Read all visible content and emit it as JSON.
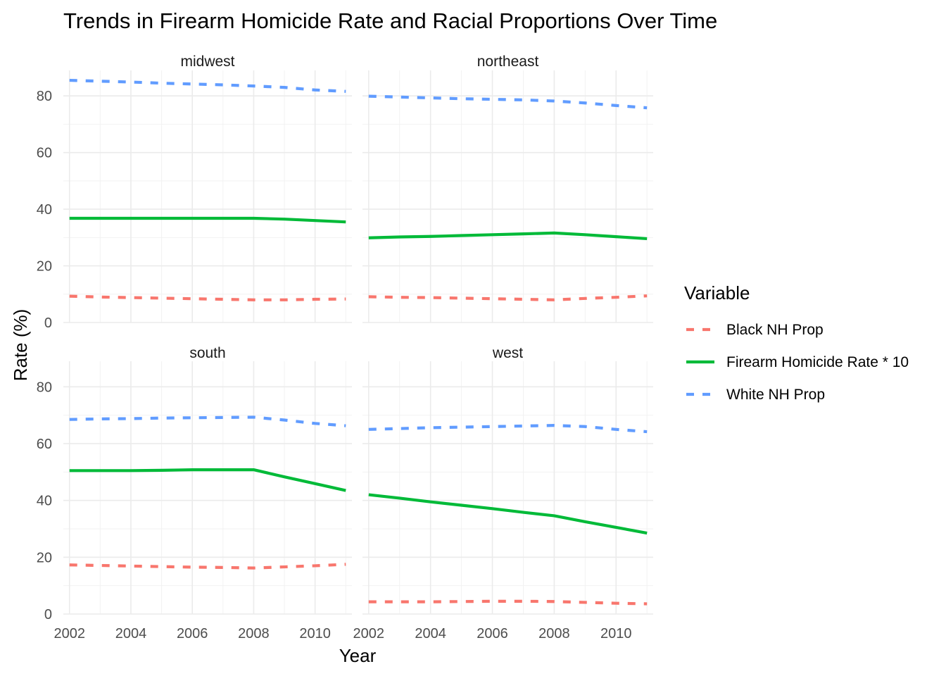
{
  "chart_data": {
    "type": "line",
    "title": "Trends in Firearm Homicide Rate and Racial Proportions Over Time",
    "xlabel": "Year",
    "ylabel": "Rate (%)",
    "xlim": [
      2001.8,
      2011.2
    ],
    "ylim": [
      0,
      89
    ],
    "x_ticks": [
      "2002",
      "2004",
      "2006",
      "2008",
      "2010"
    ],
    "y_ticks": [
      "0",
      "20",
      "40",
      "60",
      "80"
    ],
    "grid": true,
    "legend": {
      "title": "Variable",
      "placement": "right",
      "entries": [
        "Black NH Prop",
        "Firearm Homicide Rate * 10",
        "White NH Prop"
      ]
    },
    "colors": {
      "Black NH Prop": "#F8766D",
      "Firearm Homicide Rate * 10": "#00BA38",
      "White NH Prop": "#619CFF"
    },
    "x": [
      2002,
      2003,
      2004,
      2005,
      2006,
      2007,
      2008,
      2009,
      2010,
      2011
    ],
    "panels": [
      {
        "name": "midwest",
        "series": [
          {
            "name": "Black NH Prop",
            "values": [
              9.3,
              9.0,
              8.8,
              8.6,
              8.4,
              8.2,
              8.0,
              8.0,
              8.2,
              8.3
            ]
          },
          {
            "name": "Firearm Homicide Rate * 10",
            "values": [
              36.8,
              36.8,
              36.8,
              36.8,
              36.8,
              36.8,
              36.8,
              36.5,
              36.0,
              35.5
            ]
          },
          {
            "name": "White NH Prop",
            "values": [
              85.5,
              85.2,
              84.9,
              84.5,
              84.2,
              83.9,
              83.5,
              83.0,
              82.1,
              81.6
            ]
          }
        ]
      },
      {
        "name": "northeast",
        "series": [
          {
            "name": "Black NH Prop",
            "values": [
              9.1,
              8.9,
              8.8,
              8.6,
              8.4,
              8.2,
              8.0,
              8.5,
              8.9,
              9.4
            ]
          },
          {
            "name": "Firearm Homicide Rate * 10",
            "values": [
              29.9,
              30.2,
              30.4,
              30.7,
              31.0,
              31.3,
              31.6,
              31.0,
              30.3,
              29.6
            ]
          },
          {
            "name": "White NH Prop",
            "values": [
              79.9,
              79.6,
              79.3,
              79.0,
              78.8,
              78.6,
              78.2,
              77.5,
              76.6,
              75.8
            ]
          }
        ]
      },
      {
        "name": "south",
        "series": [
          {
            "name": "Black NH Prop",
            "values": [
              17.3,
              17.1,
              16.9,
              16.7,
              16.5,
              16.4,
              16.2,
              16.6,
              17.0,
              17.5
            ]
          },
          {
            "name": "Firearm Homicide Rate * 10",
            "values": [
              50.5,
              50.5,
              50.5,
              50.6,
              50.8,
              50.8,
              50.8,
              48.3,
              45.9,
              43.5
            ]
          },
          {
            "name": "White NH Prop",
            "values": [
              68.5,
              68.7,
              68.8,
              69.0,
              69.1,
              69.2,
              69.3,
              68.3,
              67.1,
              66.3
            ]
          }
        ]
      },
      {
        "name": "west",
        "series": [
          {
            "name": "Black NH Prop",
            "values": [
              4.3,
              4.3,
              4.3,
              4.4,
              4.5,
              4.5,
              4.4,
              4.1,
              3.8,
              3.6
            ]
          },
          {
            "name": "Firearm Homicide Rate * 10",
            "values": [
              42.0,
              40.8,
              39.5,
              38.3,
              37.1,
              35.8,
              34.6,
              32.5,
              30.5,
              28.5
            ]
          },
          {
            "name": "White NH Prop",
            "values": [
              65.0,
              65.3,
              65.6,
              65.8,
              66.0,
              66.2,
              66.4,
              66.0,
              65.0,
              64.2
            ]
          }
        ]
      }
    ]
  }
}
